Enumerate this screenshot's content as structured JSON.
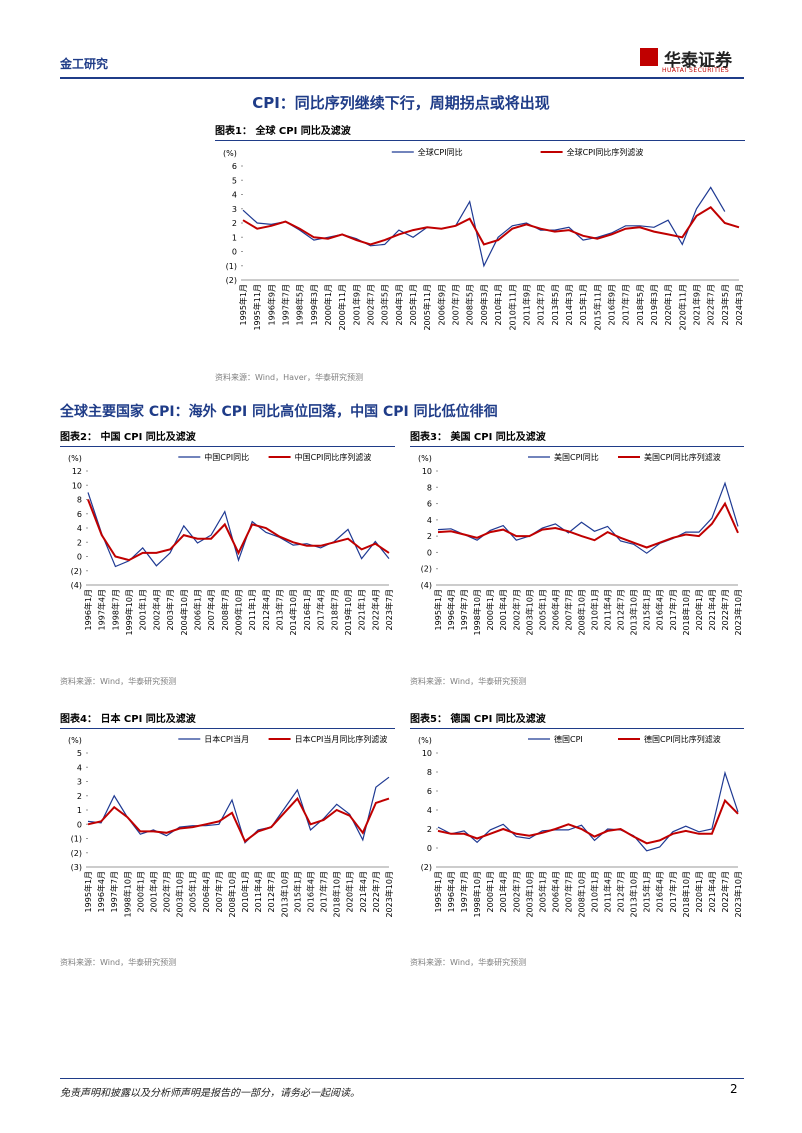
{
  "header": {
    "section": "金工研究",
    "logo": "华泰证券",
    "logo_en": "HUATAI SECURITIES"
  },
  "heading1": "CPI：同比序列继续下行，周期拐点或将出现",
  "heading2": "全球主要国家 CPI：海外 CPI 同比高位回落，中国 CPI 同比低位徘徊",
  "footer": {
    "disclaimer": "免责声明和披露以及分析师声明是报告的一部分，请务必一起阅读。",
    "page": "2"
  },
  "chart_data": [
    {
      "type": "line",
      "title": "图表1：  全球 CPI 同比及滤波",
      "unit": "(%)",
      "source": "资料来源：Wind，Haver，华泰研究预测",
      "categories": [
        "1995年1月",
        "1995年11月",
        "1996年9月",
        "1997年7月",
        "1998年5月",
        "1999年3月",
        "2000年1月",
        "2000年11月",
        "2001年9月",
        "2002年7月",
        "2003年5月",
        "2004年3月",
        "2005年1月",
        "2005年11月",
        "2006年9月",
        "2007年7月",
        "2008年5月",
        "2009年3月",
        "2010年1月",
        "2010年11月",
        "2011年9月",
        "2012年7月",
        "2013年5月",
        "2014年3月",
        "2015年1月",
        "2015年11月",
        "2016年9月",
        "2017年7月",
        "2018年5月",
        "2019年3月",
        "2020年1月",
        "2020年11月",
        "2021年9月",
        "2022年7月",
        "2023年5月",
        "2024年3月"
      ],
      "series": [
        {
          "name": "全球CPI同比",
          "color": "#1f3a93",
          "values": [
            2.9,
            2.0,
            1.9,
            2.1,
            1.5,
            0.8,
            1.0,
            1.2,
            0.9,
            0.4,
            0.5,
            1.5,
            1.0,
            1.7,
            1.6,
            1.8,
            3.5,
            -1.0,
            1.0,
            1.8,
            2.0,
            1.5,
            1.5,
            1.7,
            0.8,
            1.0,
            1.3,
            1.8,
            1.8,
            1.7,
            2.2,
            0.5,
            3.0,
            4.5,
            2.8,
            null
          ]
        },
        {
          "name": "全球CPI同比序列滤波",
          "color": "#c00000",
          "values": [
            2.2,
            1.6,
            1.8,
            2.1,
            1.6,
            1.0,
            0.9,
            1.2,
            0.8,
            0.5,
            0.8,
            1.2,
            1.5,
            1.7,
            1.6,
            1.8,
            2.3,
            0.5,
            0.8,
            1.6,
            1.9,
            1.6,
            1.4,
            1.5,
            1.1,
            0.9,
            1.2,
            1.6,
            1.7,
            1.4,
            1.2,
            1.0,
            2.5,
            3.1,
            2.0,
            1.7
          ]
        }
      ],
      "ylim": [
        -2,
        6
      ],
      "yticks": [
        {
          "value": -2,
          "label": "(2)"
        },
        {
          "value": -1,
          "label": "(1)"
        },
        0,
        1,
        2,
        3,
        4,
        5,
        6
      ]
    },
    {
      "type": "line",
      "title": "图表2：  中国 CPI 同比及滤波",
      "unit": "(%)",
      "source": "资料来源：Wind，华泰研究预测",
      "categories": [
        "1996年1月",
        "1997年4月",
        "1998年7月",
        "1999年10月",
        "2001年1月",
        "2002年4月",
        "2003年7月",
        "2004年10月",
        "2006年1月",
        "2007年4月",
        "2008年7月",
        "2009年10月",
        "2011年1月",
        "2012年4月",
        "2013年7月",
        "2014年10月",
        "2016年1月",
        "2017年4月",
        "2018年7月",
        "2019年10月",
        "2021年1月",
        "2022年4月",
        "2023年7月"
      ],
      "series": [
        {
          "name": "中国CPI同比",
          "color": "#1f3a93",
          "values": [
            9.0,
            3.2,
            -1.4,
            -0.6,
            1.2,
            -1.3,
            0.5,
            4.3,
            1.9,
            3.0,
            6.3,
            -0.5,
            4.9,
            3.4,
            2.7,
            1.6,
            1.8,
            1.2,
            2.1,
            3.8,
            -0.3,
            2.1,
            -0.3
          ]
        },
        {
          "name": "中国CPI同比序列滤波",
          "color": "#c00000",
          "values": [
            8.0,
            3.0,
            0.0,
            -0.5,
            0.5,
            0.5,
            1.0,
            3.0,
            2.5,
            2.5,
            4.5,
            0.5,
            4.5,
            4.0,
            2.8,
            2.0,
            1.5,
            1.5,
            2.0,
            2.5,
            1.0,
            1.8,
            0.5
          ]
        }
      ],
      "ylim": [
        -4,
        12
      ],
      "yticks": [
        {
          "value": -4,
          "label": "(4)"
        },
        {
          "value": -2,
          "label": "(2)"
        },
        0,
        2,
        4,
        6,
        8,
        10,
        12
      ]
    },
    {
      "type": "line",
      "title": "图表3：  美国 CPI 同比及滤波",
      "unit": "(%)",
      "source": "资料来源：Wind，华泰研究预测",
      "categories": [
        "1995年1月",
        "1996年4月",
        "1997年7月",
        "1998年10月",
        "2000年1月",
        "2001年4月",
        "2002年7月",
        "2003年10月",
        "2005年1月",
        "2006年4月",
        "2007年7月",
        "2008年10月",
        "2010年1月",
        "2011年4月",
        "2012年7月",
        "2013年10月",
        "2015年1月",
        "2016年4月",
        "2017年7月",
        "2018年10月",
        "2020年1月",
        "2021年4月",
        "2022年7月",
        "2023年10月"
      ],
      "series": [
        {
          "name": "美国CPI同比",
          "color": "#1f3a93",
          "values": [
            2.8,
            2.9,
            2.2,
            1.5,
            2.7,
            3.3,
            1.5,
            2.0,
            3.0,
            3.5,
            2.4,
            3.7,
            2.6,
            3.2,
            1.4,
            1.0,
            -0.1,
            1.1,
            1.7,
            2.5,
            2.5,
            4.2,
            8.5,
            3.2
          ]
        },
        {
          "name": "美国CPI同比序列滤波",
          "color": "#c00000",
          "values": [
            2.5,
            2.6,
            2.2,
            1.8,
            2.5,
            2.8,
            2.0,
            2.0,
            2.8,
            3.0,
            2.6,
            2.0,
            1.5,
            2.5,
            1.8,
            1.2,
            0.6,
            1.2,
            1.8,
            2.2,
            2.0,
            3.5,
            6.0,
            2.4
          ]
        }
      ],
      "ylim": [
        -4,
        10
      ],
      "yticks": [
        {
          "value": -4,
          "label": "(4)"
        },
        {
          "value": -2,
          "label": "(2)"
        },
        0,
        2,
        4,
        6,
        8,
        10
      ]
    },
    {
      "type": "line",
      "title": "图表4：  日本 CPI 同比及滤波",
      "unit": "(%)",
      "source": "资料来源：Wind，华泰研究预测",
      "categories": [
        "1995年1月",
        "1996年4月",
        "1997年7月",
        "1998年10月",
        "2000年1月",
        "2001年4月",
        "2002年7月",
        "2003年10月",
        "2005年1月",
        "2006年4月",
        "2007年7月",
        "2008年10月",
        "2010年1月",
        "2011年4月",
        "2012年7月",
        "2013年10月",
        "2015年1月",
        "2016年4月",
        "2017年7月",
        "2018年10月",
        "2020年1月",
        "2021年4月",
        "2022年7月",
        "2023年10月"
      ],
      "series": [
        {
          "name": "日本CPI当月",
          "color": "#1f3a93",
          "values": [
            0.2,
            0.1,
            2.0,
            0.5,
            -0.7,
            -0.4,
            -0.8,
            -0.2,
            -0.1,
            -0.1,
            0.0,
            1.7,
            -1.3,
            -0.4,
            -0.2,
            1.1,
            2.4,
            -0.4,
            0.4,
            1.4,
            0.7,
            -1.1,
            2.6,
            3.3
          ]
        },
        {
          "name": "日本CPI当月同比序列滤波",
          "color": "#c00000",
          "values": [
            0.0,
            0.2,
            1.2,
            0.5,
            -0.5,
            -0.5,
            -0.6,
            -0.3,
            -0.2,
            0.0,
            0.2,
            0.8,
            -1.2,
            -0.5,
            -0.2,
            0.8,
            1.8,
            0.0,
            0.3,
            1.0,
            0.6,
            -0.6,
            1.5,
            1.8
          ]
        }
      ],
      "ylim": [
        -3,
        5
      ],
      "yticks": [
        {
          "value": -3,
          "label": "(3)"
        },
        {
          "value": -2,
          "label": "(2)"
        },
        {
          "value": -1,
          "label": "(1)"
        },
        0,
        1,
        2,
        3,
        4,
        5
      ]
    },
    {
      "type": "line",
      "title": "图表5：  德国 CPI 同比及滤波",
      "unit": "(%)",
      "source": "资料来源：Wind，华泰研究预测",
      "categories": [
        "1995年1月",
        "1996年4月",
        "1997年7月",
        "1998年10月",
        "2000年1月",
        "2001年4月",
        "2002年7月",
        "2003年10月",
        "2005年1月",
        "2006年4月",
        "2007年7月",
        "2008年10月",
        "2010年1月",
        "2011年4月",
        "2012年7月",
        "2013年10月",
        "2015年1月",
        "2016年4月",
        "2017年7月",
        "2018年10月",
        "2020年1月",
        "2021年4月",
        "2022年7月",
        "2023年10月"
      ],
      "series": [
        {
          "name": "德国CPI",
          "color": "#1f3a93",
          "values": [
            2.2,
            1.5,
            1.8,
            0.6,
            1.9,
            2.5,
            1.2,
            1.0,
            1.8,
            1.9,
            1.9,
            2.4,
            0.8,
            2.0,
            1.9,
            1.3,
            -0.3,
            0.1,
            1.7,
            2.3,
            1.7,
            2.0,
            7.9,
            3.8
          ]
        },
        {
          "name": "德国CPI同比序列滤波",
          "color": "#c00000",
          "values": [
            1.8,
            1.5,
            1.5,
            1.0,
            1.5,
            2.0,
            1.5,
            1.3,
            1.6,
            2.0,
            2.5,
            2.0,
            1.2,
            1.8,
            2.0,
            1.2,
            0.5,
            0.8,
            1.5,
            1.8,
            1.5,
            1.5,
            5.0,
            3.6
          ]
        }
      ],
      "ylim": [
        -2,
        10
      ],
      "yticks": [
        {
          "value": -2,
          "label": "(2)"
        },
        0,
        2,
        4,
        6,
        8,
        10
      ]
    }
  ]
}
